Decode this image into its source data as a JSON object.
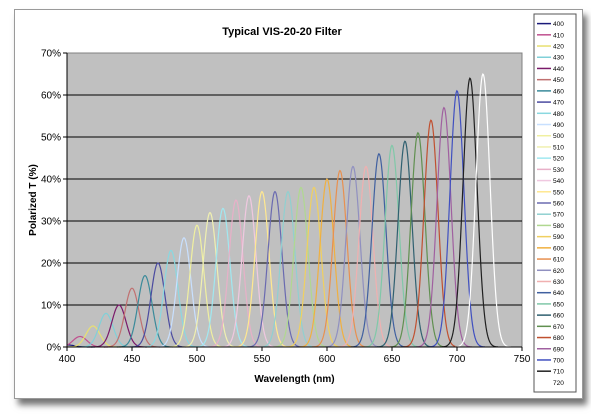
{
  "chart_data": {
    "type": "line",
    "title": "Typical VIS-20-20 Filter",
    "xlabel": "Wavelength (nm)",
    "ylabel": "Polarized T (%)",
    "xlim": [
      400,
      750
    ],
    "ylim": [
      0,
      70
    ],
    "x_ticks": [
      "400",
      "450",
      "500",
      "550",
      "600",
      "650",
      "700",
      "750"
    ],
    "y_ticks": [
      "0%",
      "10%",
      "20%",
      "30%",
      "40%",
      "50%",
      "60%",
      "70%"
    ],
    "grid": "horizontal",
    "plot_background": "#c0c0c0",
    "legend_position": "right",
    "peak_width_nm": 5.4,
    "series": [
      {
        "name": "400",
        "center": 400,
        "peak": 0.5,
        "color": "#1a1a7a"
      },
      {
        "name": "410",
        "center": 410,
        "peak": 2.5,
        "color": "#c0508f"
      },
      {
        "name": "420",
        "center": 420,
        "peak": 5,
        "color": "#e8e070"
      },
      {
        "name": "430",
        "center": 430,
        "peak": 8,
        "color": "#80d0d8"
      },
      {
        "name": "440",
        "center": 440,
        "peak": 10,
        "color": "#7a1a6a"
      },
      {
        "name": "450",
        "center": 450,
        "peak": 14,
        "color": "#c07070"
      },
      {
        "name": "460",
        "center": 460,
        "peak": 17,
        "color": "#3a8a9a"
      },
      {
        "name": "470",
        "center": 470,
        "peak": 20,
        "color": "#4a4aa0"
      },
      {
        "name": "480",
        "center": 480,
        "peak": 23,
        "color": "#8ad8e0"
      },
      {
        "name": "490",
        "center": 490,
        "peak": 26,
        "color": "#c8e0ff"
      },
      {
        "name": "500",
        "center": 500,
        "peak": 29,
        "color": "#f0f0a0"
      },
      {
        "name": "510",
        "center": 510,
        "peak": 32,
        "color": "#f0f0b0"
      },
      {
        "name": "520",
        "center": 520,
        "peak": 33,
        "color": "#a0e8f0"
      },
      {
        "name": "530",
        "center": 530,
        "peak": 35,
        "color": "#e8b0c8"
      },
      {
        "name": "540",
        "center": 540,
        "peak": 36,
        "color": "#f0c8e0"
      },
      {
        "name": "550",
        "center": 550,
        "peak": 37,
        "color": "#ffe890"
      },
      {
        "name": "560",
        "center": 560,
        "peak": 37,
        "color": "#6a6ab0"
      },
      {
        "name": "570",
        "center": 570,
        "peak": 37,
        "color": "#90d0d0"
      },
      {
        "name": "580",
        "center": 580,
        "peak": 38,
        "color": "#b0d890"
      },
      {
        "name": "590",
        "center": 590,
        "peak": 38,
        "color": "#f0d060"
      },
      {
        "name": "600",
        "center": 600,
        "peak": 40,
        "color": "#f0b040"
      },
      {
        "name": "610",
        "center": 610,
        "peak": 42,
        "color": "#e89050"
      },
      {
        "name": "620",
        "center": 620,
        "peak": 43,
        "color": "#9090c0"
      },
      {
        "name": "630",
        "center": 630,
        "peak": 43,
        "color": "#f0b0b0"
      },
      {
        "name": "640",
        "center": 640,
        "peak": 46,
        "color": "#4060a0"
      },
      {
        "name": "650",
        "center": 650,
        "peak": 48,
        "color": "#80c8a8"
      },
      {
        "name": "660",
        "center": 660,
        "peak": 49,
        "color": "#306070"
      },
      {
        "name": "670",
        "center": 670,
        "peak": 51,
        "color": "#609050"
      },
      {
        "name": "680",
        "center": 680,
        "peak": 54,
        "color": "#c05030"
      },
      {
        "name": "690",
        "center": 690,
        "peak": 57,
        "color": "#a060a0"
      },
      {
        "name": "700",
        "center": 700,
        "peak": 61,
        "color": "#4050c0"
      },
      {
        "name": "710",
        "center": 710,
        "peak": 64,
        "color": "#202020"
      },
      {
        "name": "720",
        "center": 720,
        "peak": 65,
        "color": "#ffffff"
      }
    ]
  }
}
